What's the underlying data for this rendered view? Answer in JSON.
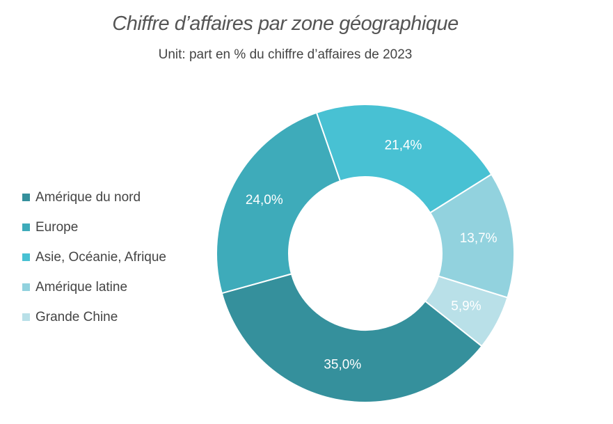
{
  "chart_data": {
    "type": "pie",
    "title": "Chiffre d’affaires par zone géographique",
    "subtitle": "Unit: part en % du chiffre d’affaires de 2023",
    "donut": true,
    "legend_position": "left",
    "categories": [
      "Amérique du nord",
      "Europe",
      "Asie, Océanie, Afrique",
      "Amérique latine",
      "Grande Chine"
    ],
    "values": [
      35.0,
      24.0,
      21.4,
      13.7,
      5.9
    ],
    "value_labels": [
      "35,0%",
      "24,0%",
      "21,4%",
      "13,7%",
      "5,9%"
    ],
    "colors": [
      "#35909C",
      "#3EABBA",
      "#48C1D3",
      "#92D2DE",
      "#B9E0E8"
    ]
  }
}
